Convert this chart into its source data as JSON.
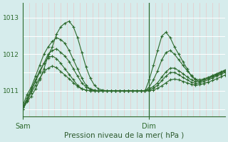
{
  "bg_color": "#d6ecec",
  "grid_color_v": "#e8c8c8",
  "grid_color_h": "#ffffff",
  "line_color": "#2d6a2d",
  "xlabel": "Pression niveau de la mer( hPa )",
  "xlabel_color": "#2d5a2d",
  "tick_color": "#2d6a2d",
  "ylim": [
    1010.3,
    1013.4
  ],
  "yticks": [
    1011,
    1012,
    1013
  ],
  "xlim": [
    0,
    48
  ],
  "sam_x": 0,
  "dim_x": 30,
  "vline_x": 30,
  "n_pts": 49,
  "series": [
    [
      1010.5,
      1010.7,
      1010.85,
      1011.05,
      1011.3,
      1011.6,
      1011.95,
      1012.2,
      1012.55,
      1012.75,
      1012.85,
      1012.9,
      1012.75,
      1012.45,
      1012.05,
      1011.65,
      1011.35,
      1011.15,
      1011.05,
      1011.02,
      1011.0,
      1011.0,
      1011.0,
      1011.0,
      1011.0,
      1011.0,
      1011.0,
      1011.0,
      1011.0,
      1011.0,
      1011.3,
      1011.7,
      1012.1,
      1012.5,
      1012.6,
      1012.45,
      1012.2,
      1012.0,
      1011.8,
      1011.6,
      1011.4,
      1011.3,
      1011.25,
      1011.3,
      1011.35,
      1011.4,
      1011.45,
      1011.5,
      1011.55
    ],
    [
      1010.6,
      1010.9,
      1011.1,
      1011.4,
      1011.7,
      1012.0,
      1012.2,
      1012.35,
      1012.45,
      1012.4,
      1012.3,
      1012.1,
      1011.85,
      1011.6,
      1011.35,
      1011.15,
      1011.05,
      1011.02,
      1011.0,
      1011.0,
      1011.0,
      1011.0,
      1011.0,
      1011.0,
      1011.0,
      1011.0,
      1011.0,
      1011.0,
      1011.0,
      1011.0,
      1011.1,
      1011.3,
      1011.55,
      1011.85,
      1012.05,
      1012.1,
      1012.0,
      1011.85,
      1011.7,
      1011.55,
      1011.42,
      1011.32,
      1011.3,
      1011.33,
      1011.37,
      1011.42,
      1011.47,
      1011.52,
      1011.57
    ],
    [
      1010.55,
      1010.75,
      1011.0,
      1011.25,
      1011.5,
      1011.75,
      1012.0,
      1012.1,
      1012.15,
      1012.05,
      1011.95,
      1011.8,
      1011.6,
      1011.4,
      1011.22,
      1011.1,
      1011.04,
      1011.01,
      1011.0,
      1011.0,
      1011.0,
      1011.0,
      1011.0,
      1011.0,
      1011.0,
      1011.0,
      1011.0,
      1011.0,
      1011.0,
      1011.0,
      1011.05,
      1011.12,
      1011.22,
      1011.38,
      1011.52,
      1011.62,
      1011.62,
      1011.55,
      1011.47,
      1011.38,
      1011.3,
      1011.25,
      1011.27,
      1011.3,
      1011.34,
      1011.38,
      1011.43,
      1011.48,
      1011.53
    ],
    [
      1010.55,
      1010.8,
      1011.05,
      1011.3,
      1011.55,
      1011.75,
      1011.9,
      1011.95,
      1011.88,
      1011.75,
      1011.6,
      1011.45,
      1011.3,
      1011.15,
      1011.06,
      1011.02,
      1011.0,
      1011.0,
      1011.0,
      1011.0,
      1011.0,
      1011.0,
      1011.0,
      1011.0,
      1011.0,
      1011.0,
      1011.0,
      1011.0,
      1011.0,
      1011.0,
      1011.02,
      1011.07,
      1011.15,
      1011.28,
      1011.4,
      1011.5,
      1011.5,
      1011.44,
      1011.37,
      1011.3,
      1011.24,
      1011.2,
      1011.22,
      1011.26,
      1011.3,
      1011.35,
      1011.4,
      1011.45,
      1011.5
    ],
    [
      1010.5,
      1010.72,
      1010.95,
      1011.15,
      1011.35,
      1011.52,
      1011.62,
      1011.68,
      1011.63,
      1011.53,
      1011.43,
      1011.33,
      1011.22,
      1011.12,
      1011.05,
      1011.02,
      1011.0,
      1011.0,
      1011.0,
      1011.0,
      1011.0,
      1011.0,
      1011.0,
      1011.0,
      1011.0,
      1011.0,
      1011.0,
      1011.0,
      1011.0,
      1011.0,
      1011.0,
      1011.02,
      1011.07,
      1011.14,
      1011.22,
      1011.3,
      1011.32,
      1011.3,
      1011.26,
      1011.22,
      1011.18,
      1011.15,
      1011.17,
      1011.2,
      1011.24,
      1011.28,
      1011.33,
      1011.38,
      1011.43
    ]
  ]
}
